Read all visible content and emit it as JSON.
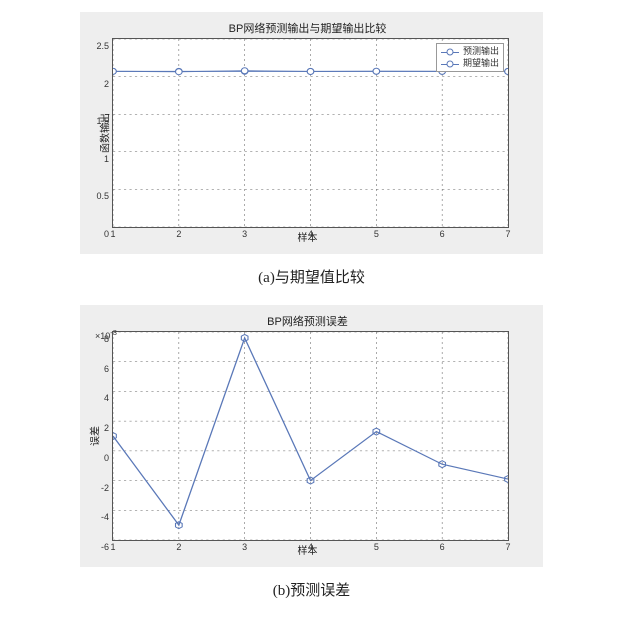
{
  "chartA": {
    "type": "line",
    "title": "BP网络预测输出与期望输出比较",
    "xlabel": "样本",
    "ylabel": "函数输出",
    "xlim": [
      1,
      7
    ],
    "ylim": [
      0,
      2.5
    ],
    "xticks": [
      1,
      2,
      3,
      4,
      5,
      6,
      7
    ],
    "yticks": [
      0,
      0.5,
      1,
      1.5,
      2,
      2.5
    ],
    "grid_color": "#666666",
    "background_color": "#ffffff",
    "panel_color": "#eeeeee",
    "series": [
      {
        "name": "预测输出",
        "color": "#5a78b8",
        "marker": "circle",
        "x": [
          1,
          2,
          3,
          4,
          5,
          6,
          7
        ],
        "y": [
          2.07,
          2.07,
          2.07,
          2.07,
          2.07,
          2.07,
          2.07
        ]
      },
      {
        "name": "期望输出",
        "color": "#5a78b8",
        "marker": "circle",
        "x": [
          1,
          2,
          3,
          4,
          5,
          6,
          7
        ],
        "y": [
          2.07,
          2.065,
          2.078,
          2.068,
          2.071,
          2.069,
          2.068
        ]
      }
    ],
    "legend": {
      "items": [
        "预测输出",
        "期望输出"
      ],
      "position": "top-right"
    },
    "caption": "(a)与期望值比较"
  },
  "chartB": {
    "type": "line",
    "title": "BP网络预测误差",
    "xlabel": "样本",
    "ylabel": "误差",
    "xlim": [
      1,
      7
    ],
    "ylim": [
      -6,
      8
    ],
    "y_exponent_label": "×10",
    "y_exponent": "-3",
    "xticks": [
      1,
      2,
      3,
      4,
      5,
      6,
      7
    ],
    "yticks": [
      -6,
      -4,
      -2,
      0,
      2,
      4,
      6,
      8
    ],
    "grid_color": "#666666",
    "background_color": "#ffffff",
    "panel_color": "#eeeeee",
    "series": [
      {
        "name": "误差",
        "color": "#5a78b8",
        "marker": "star",
        "x": [
          1,
          2,
          3,
          4,
          5,
          6,
          7
        ],
        "y": [
          1.0,
          -5.0,
          7.6,
          -2.0,
          1.3,
          -0.9,
          -1.9
        ]
      }
    ],
    "caption": "(b)预测误差"
  }
}
